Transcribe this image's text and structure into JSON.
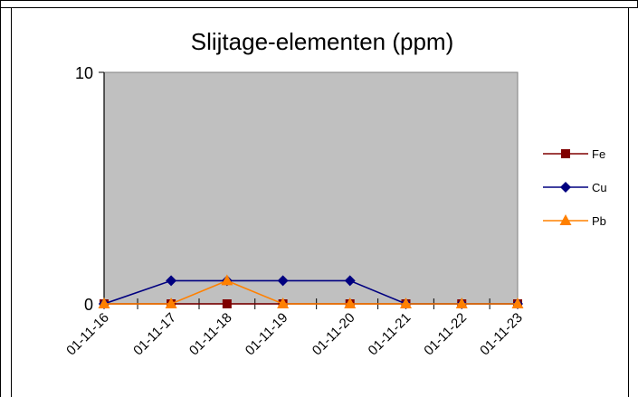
{
  "chart_data": {
    "type": "line",
    "title": "Slijtage-elementen (ppm)",
    "xlabel": "",
    "ylabel": "",
    "ylim": [
      0,
      10
    ],
    "y_ticks": [
      "0",
      "10"
    ],
    "categories": [
      "01-11-16",
      "01-11-17",
      "01-11-18",
      "01-11-19",
      "01-11-20",
      "01-11-21",
      "01-11-22",
      "01-11-23"
    ],
    "x_positions": [
      0,
      1.2,
      2.2,
      3.2,
      4.4,
      5.4,
      6.4,
      7.4
    ],
    "plot_background": "#c0c0c0",
    "grid": false,
    "legend_position": "right",
    "series": [
      {
        "name": "Fe",
        "color": "#800000",
        "marker": "square",
        "x": [
          0,
          1.2,
          2.2,
          3.2,
          4.4,
          5.4,
          6.4,
          7.4
        ],
        "values": [
          0,
          0,
          0,
          0,
          0,
          0,
          0,
          0
        ]
      },
      {
        "name": "Cu",
        "color": "#000080",
        "marker": "diamond",
        "x": [
          0,
          1.2,
          2.2,
          3.2,
          4.4,
          5.4,
          6.4,
          7.4
        ],
        "values": [
          0,
          1,
          1,
          1,
          1,
          0,
          0,
          0
        ]
      },
      {
        "name": "Pb",
        "color": "#ff8000",
        "marker": "triangle",
        "x": [
          0,
          1.2,
          2.2,
          3.2,
          4.4,
          5.4,
          6.4,
          7.4
        ],
        "values": [
          0,
          0,
          1,
          0,
          0,
          0,
          0,
          0
        ]
      }
    ]
  }
}
